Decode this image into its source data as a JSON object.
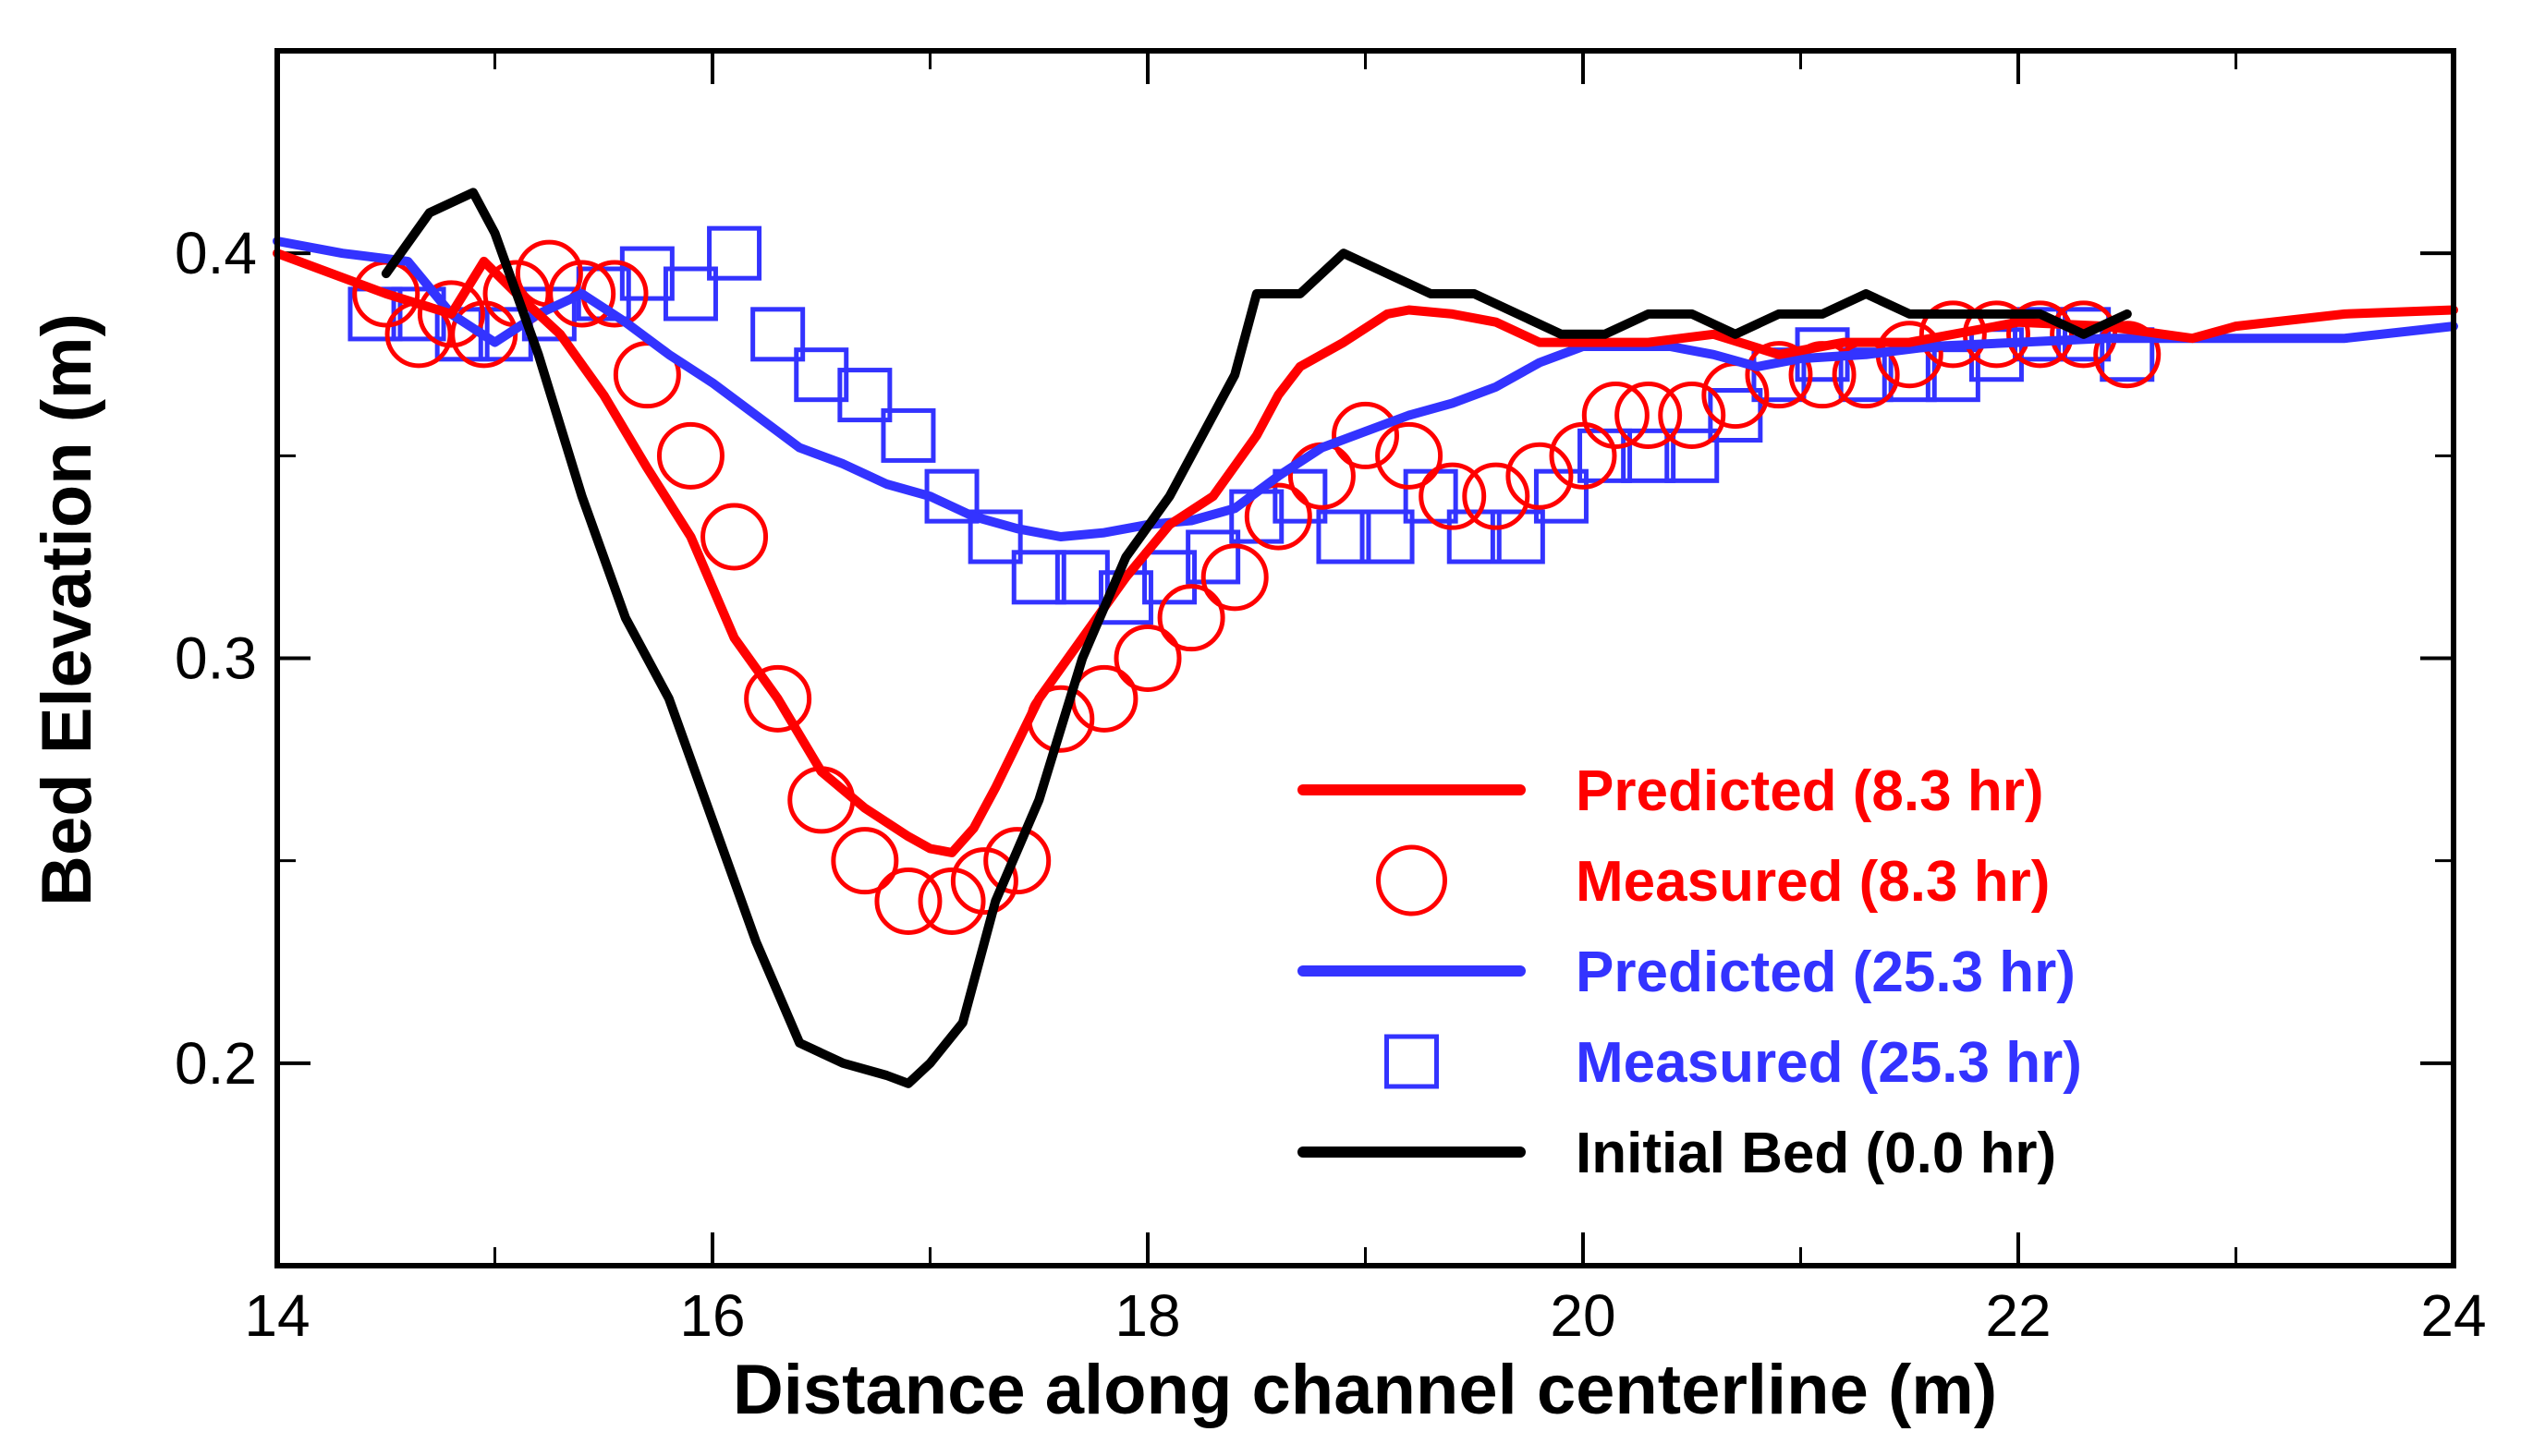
{
  "chart_data": {
    "type": "line",
    "title": "",
    "xlabel": "Distance along channel centerline (m)",
    "ylabel": "Bed Elevation (m)",
    "xlim": [
      14,
      24
    ],
    "ylim": [
      0.15,
      0.45
    ],
    "x_ticks": [
      14,
      16,
      18,
      20,
      22,
      24
    ],
    "x_tick_labels": [
      "14",
      "16",
      "18",
      "20",
      "22",
      "24"
    ],
    "x_minor_ticks": [
      15,
      17,
      19,
      21,
      23
    ],
    "y_ticks": [
      0.2,
      0.3,
      0.4
    ],
    "y_tick_labels": [
      "0.2",
      "0.3",
      "0.4"
    ],
    "y_minor_ticks": [
      0.25,
      0.35
    ],
    "grid": false,
    "legend_position": "bottom-right",
    "colors": {
      "red": "#ff0000",
      "blue": "#3333ff",
      "black": "#000000",
      "axis": "#000000"
    },
    "series": [
      {
        "name": "Predicted (8.3 hr)",
        "kind": "line",
        "color": "#ff0000",
        "x": [
          14.0,
          14.5,
          14.8,
          14.95,
          15.1,
          15.3,
          15.5,
          15.7,
          15.9,
          16.1,
          16.3,
          16.5,
          16.7,
          16.9,
          17.0,
          17.1,
          17.2,
          17.3,
          17.5,
          17.7,
          17.9,
          18.1,
          18.3,
          18.5,
          18.6,
          18.7,
          18.9,
          19.1,
          19.2,
          19.4,
          19.6,
          19.8,
          20.0,
          20.3,
          20.6,
          20.9,
          21.2,
          21.5,
          21.8,
          22.0,
          22.4,
          22.8,
          23.0,
          23.5,
          24.0
        ],
        "y": [
          0.4,
          0.39,
          0.385,
          0.398,
          0.39,
          0.38,
          0.365,
          0.347,
          0.33,
          0.305,
          0.29,
          0.272,
          0.263,
          0.256,
          0.253,
          0.252,
          0.258,
          0.268,
          0.29,
          0.305,
          0.32,
          0.333,
          0.34,
          0.355,
          0.365,
          0.372,
          0.378,
          0.385,
          0.386,
          0.385,
          0.383,
          0.378,
          0.378,
          0.378,
          0.38,
          0.375,
          0.378,
          0.378,
          0.381,
          0.383,
          0.382,
          0.379,
          0.382,
          0.385,
          0.386
        ]
      },
      {
        "name": "Measured (8.3 hr)",
        "kind": "marker",
        "marker": "circle",
        "color": "#ff0000",
        "x": [
          14.5,
          14.65,
          14.8,
          14.95,
          15.1,
          15.25,
          15.4,
          15.55,
          15.7,
          15.9,
          16.1,
          16.3,
          16.5,
          16.7,
          16.9,
          17.1,
          17.25,
          17.4,
          17.6,
          17.8,
          18.0,
          18.2,
          18.4,
          18.6,
          18.8,
          19.0,
          19.2,
          19.4,
          19.6,
          19.8,
          20.0,
          20.15,
          20.3,
          20.5,
          20.7,
          20.9,
          21.1,
          21.3,
          21.5,
          21.7,
          21.9,
          22.1,
          22.3,
          22.5
        ],
        "y": [
          0.39,
          0.38,
          0.385,
          0.38,
          0.39,
          0.395,
          0.39,
          0.39,
          0.37,
          0.35,
          0.33,
          0.29,
          0.265,
          0.25,
          0.24,
          0.24,
          0.245,
          0.25,
          0.285,
          0.29,
          0.3,
          0.31,
          0.32,
          0.335,
          0.345,
          0.355,
          0.35,
          0.34,
          0.34,
          0.345,
          0.35,
          0.36,
          0.36,
          0.36,
          0.365,
          0.37,
          0.37,
          0.37,
          0.375,
          0.38,
          0.38,
          0.38,
          0.38,
          0.375
        ]
      },
      {
        "name": "Predicted (25.3 hr)",
        "kind": "line",
        "color": "#3333ff",
        "x": [
          14.0,
          14.3,
          14.6,
          14.8,
          15.0,
          15.2,
          15.4,
          15.6,
          15.8,
          16.0,
          16.2,
          16.4,
          16.6,
          16.8,
          17.0,
          17.2,
          17.4,
          17.6,
          17.8,
          18.0,
          18.2,
          18.4,
          18.6,
          18.8,
          19.0,
          19.2,
          19.4,
          19.6,
          19.8,
          20.0,
          20.2,
          20.4,
          20.6,
          20.8,
          21.0,
          21.3,
          21.6,
          22.0,
          22.4,
          23.0,
          23.5,
          24.0
        ],
        "y": [
          0.403,
          0.4,
          0.398,
          0.385,
          0.378,
          0.385,
          0.39,
          0.383,
          0.375,
          0.368,
          0.36,
          0.352,
          0.348,
          0.343,
          0.34,
          0.335,
          0.332,
          0.33,
          0.331,
          0.333,
          0.334,
          0.337,
          0.345,
          0.352,
          0.356,
          0.36,
          0.363,
          0.367,
          0.373,
          0.377,
          0.377,
          0.377,
          0.375,
          0.372,
          0.374,
          0.375,
          0.377,
          0.378,
          0.379,
          0.379,
          0.379,
          0.382
        ]
      },
      {
        "name": "Measured (25.3 hr)",
        "kind": "marker",
        "marker": "square",
        "color": "#3333ff",
        "x": [
          14.45,
          14.65,
          14.85,
          15.05,
          15.25,
          15.5,
          15.7,
          15.9,
          16.1,
          16.3,
          16.5,
          16.7,
          16.9,
          17.1,
          17.3,
          17.5,
          17.7,
          17.9,
          18.1,
          18.3,
          18.5,
          18.7,
          18.9,
          19.1,
          19.3,
          19.5,
          19.7,
          19.9,
          20.1,
          20.3,
          20.5,
          20.7,
          20.9,
          21.1,
          21.3,
          21.5,
          21.7,
          21.9,
          22.1,
          22.3,
          22.5
        ],
        "y": [
          0.385,
          0.385,
          0.38,
          0.38,
          0.385,
          0.39,
          0.395,
          0.39,
          0.4,
          0.38,
          0.37,
          0.365,
          0.355,
          0.34,
          0.33,
          0.32,
          0.32,
          0.315,
          0.32,
          0.325,
          0.335,
          0.34,
          0.33,
          0.33,
          0.34,
          0.33,
          0.33,
          0.34,
          0.35,
          0.35,
          0.35,
          0.36,
          0.37,
          0.375,
          0.37,
          0.37,
          0.37,
          0.375,
          0.38,
          0.38,
          0.375
        ]
      },
      {
        "name": "Initial Bed (0.0 hr)",
        "kind": "line",
        "color": "#000000",
        "x": [
          14.5,
          14.7,
          14.9,
          15.0,
          15.1,
          15.2,
          15.4,
          15.6,
          15.8,
          16.0,
          16.2,
          16.4,
          16.6,
          16.8,
          16.9,
          17.0,
          17.15,
          17.3,
          17.5,
          17.7,
          17.9,
          18.1,
          18.3,
          18.4,
          18.5,
          18.7,
          18.9,
          19.1,
          19.3,
          19.5,
          19.7,
          19.9,
          20.1,
          20.3,
          20.5,
          20.7,
          20.9,
          21.1,
          21.3,
          21.5,
          21.7,
          21.9,
          22.1,
          22.3,
          22.5
        ],
        "y": [
          0.395,
          0.41,
          0.415,
          0.405,
          0.39,
          0.375,
          0.34,
          0.31,
          0.29,
          0.26,
          0.23,
          0.205,
          0.2,
          0.197,
          0.195,
          0.2,
          0.21,
          0.24,
          0.265,
          0.3,
          0.325,
          0.34,
          0.36,
          0.37,
          0.39,
          0.39,
          0.4,
          0.395,
          0.39,
          0.39,
          0.385,
          0.38,
          0.38,
          0.385,
          0.385,
          0.38,
          0.385,
          0.385,
          0.39,
          0.385,
          0.385,
          0.385,
          0.385,
          0.38,
          0.385
        ]
      }
    ]
  }
}
